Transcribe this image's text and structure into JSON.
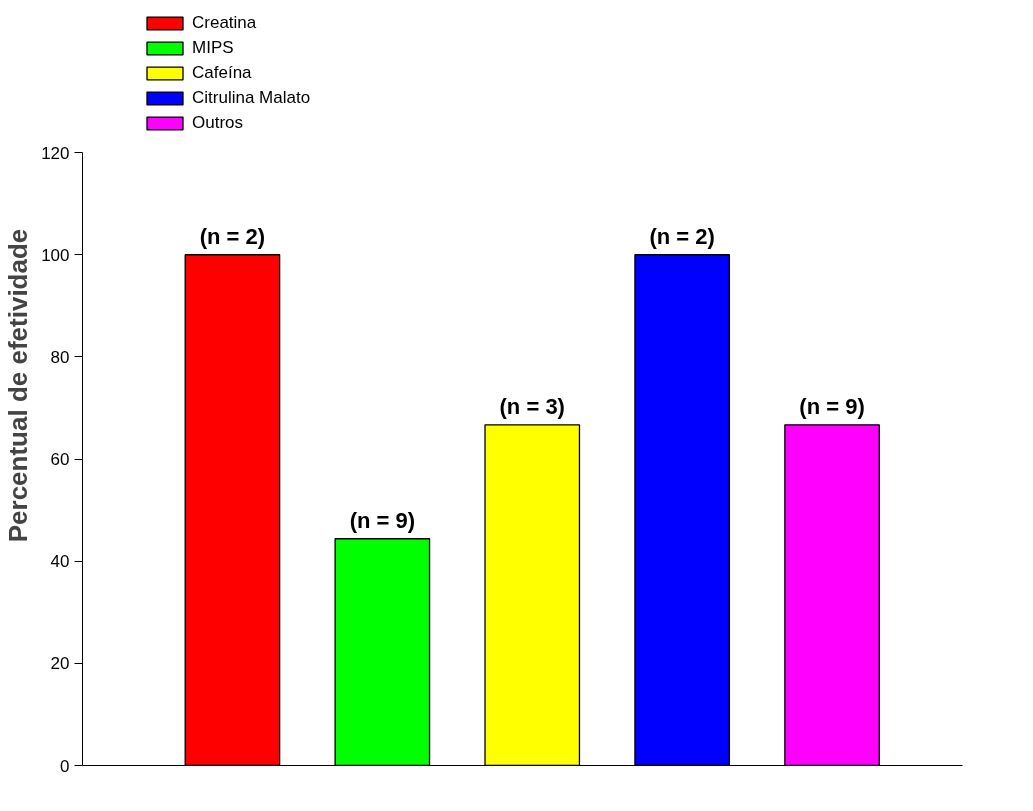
{
  "chart_data": {
    "type": "bar",
    "ylabel": "Percentual de efetividade",
    "categories": [
      null,
      null,
      null,
      null,
      null
    ],
    "series": [
      {
        "name": "Creatina",
        "color": "#ff0000",
        "values": [
          100,
          null,
          null,
          null,
          null
        ]
      },
      {
        "name": "MIPS",
        "color": "#00ff00",
        "values": [
          null,
          44.4,
          null,
          null,
          null
        ]
      },
      {
        "name": "Cafeína",
        "color": "#ffff00",
        "values": [
          null,
          null,
          66.7,
          null,
          null
        ]
      },
      {
        "name": "Citrulina Malato",
        "color": "#0000ff",
        "values": [
          null,
          null,
          null,
          100,
          null
        ]
      },
      {
        "name": "Outros",
        "color": "#ff00ff",
        "values": [
          null,
          null,
          null,
          null,
          66.7
        ]
      }
    ],
    "annotations": [
      {
        "text": "(n = 2)",
        "y": 100
      },
      {
        "text": "(n = 9)",
        "y": 44.4
      },
      {
        "text": "(n = 3)",
        "y": 66.7
      },
      {
        "text": "(n = 2)",
        "y": 100
      },
      {
        "text": "(n = 9)",
        "y": 66.7
      }
    ],
    "ylim": [
      0,
      120
    ],
    "yticks": [
      0,
      20,
      40,
      60,
      80,
      100,
      120
    ],
    "legend": "top left",
    "grid": false,
    "tick_labels": "y"
  }
}
